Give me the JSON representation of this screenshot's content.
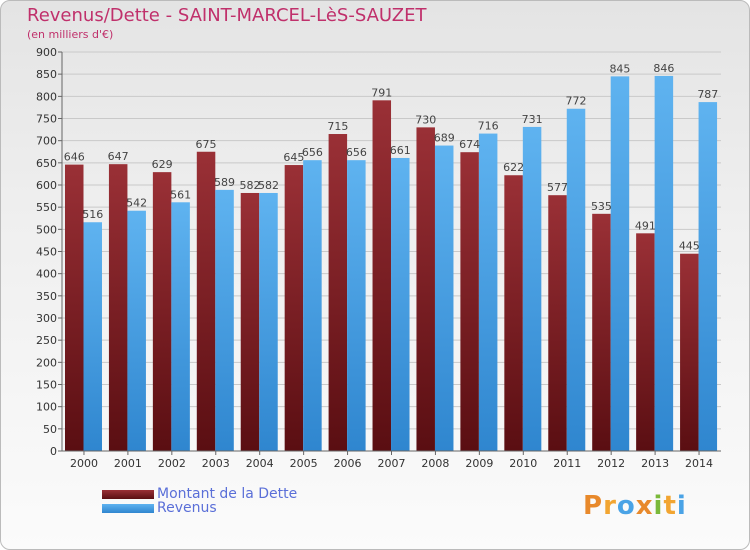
{
  "chart_data": {
    "type": "bar",
    "title": "Revenus/Dette - SAINT-MARCEL-LèS-SAUZET",
    "subtitle": "(en milliers d'€)",
    "categories": [
      "2000",
      "2001",
      "2002",
      "2003",
      "2004",
      "2005",
      "2006",
      "2007",
      "2008",
      "2009",
      "2010",
      "2011",
      "2012",
      "2013",
      "2014"
    ],
    "series": [
      {
        "name": "Montant de la Dette",
        "color": "#7a1f24",
        "values": [
          646,
          647,
          629,
          675,
          582,
          645,
          715,
          791,
          730,
          674,
          622,
          577,
          535,
          491,
          445
        ]
      },
      {
        "name": "Revenus",
        "color": "#4aa3e6",
        "values": [
          516,
          542,
          561,
          589,
          582,
          656,
          656,
          661,
          689,
          716,
          731,
          772,
          845,
          846,
          787
        ]
      }
    ],
    "ylim": [
      0,
      900
    ],
    "yticks": [
      0,
      50,
      100,
      150,
      200,
      250,
      300,
      350,
      400,
      450,
      500,
      550,
      600,
      650,
      700,
      750,
      800,
      850,
      900
    ],
    "grid": true,
    "legend_position": "bottom-left"
  },
  "logo": {
    "text": "Proxiti",
    "name": "proxiti-logo"
  }
}
